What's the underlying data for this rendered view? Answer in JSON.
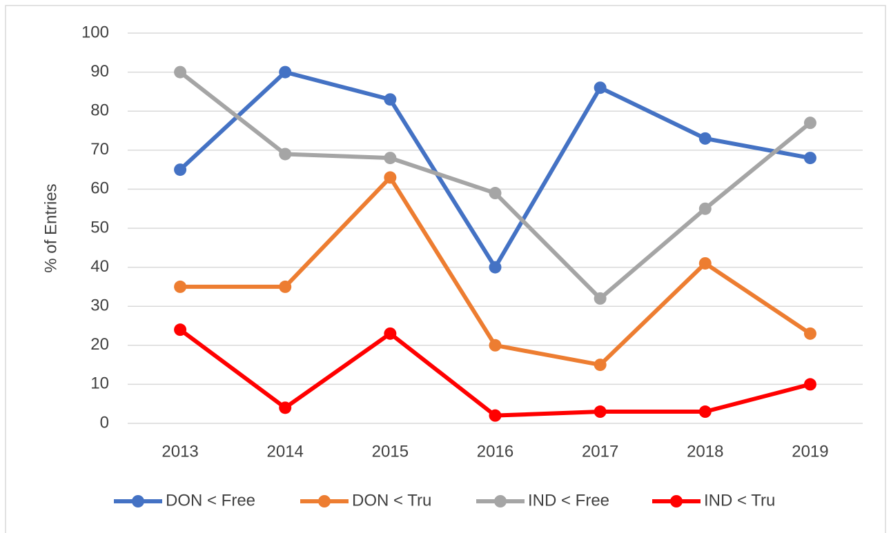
{
  "chart_data": {
    "type": "line",
    "categories": [
      "2013",
      "2014",
      "2015",
      "2016",
      "2017",
      "2018",
      "2019"
    ],
    "y_label": "% of Entries",
    "series": [
      {
        "name": "DON < Free",
        "color": "#4472c4",
        "values": [
          65,
          90,
          83,
          40,
          86,
          73,
          68
        ]
      },
      {
        "name": "DON < Tru",
        "color": "#ed7d31",
        "values": [
          35,
          35,
          63,
          20,
          15,
          41,
          23
        ]
      },
      {
        "name": "IND < Free",
        "color": "#a5a5a5",
        "values": [
          90,
          69,
          68,
          59,
          32,
          55,
          77
        ]
      },
      {
        "name": "IND < Tru",
        "color": "#ff0000",
        "values": [
          24,
          4,
          23,
          2,
          3,
          3,
          10
        ]
      }
    ],
    "ylim": [
      0,
      100
    ],
    "yticks": [
      0,
      10,
      20,
      30,
      40,
      50,
      60,
      70,
      80,
      90,
      100
    ],
    "grid": true,
    "legend": "bottom"
  }
}
